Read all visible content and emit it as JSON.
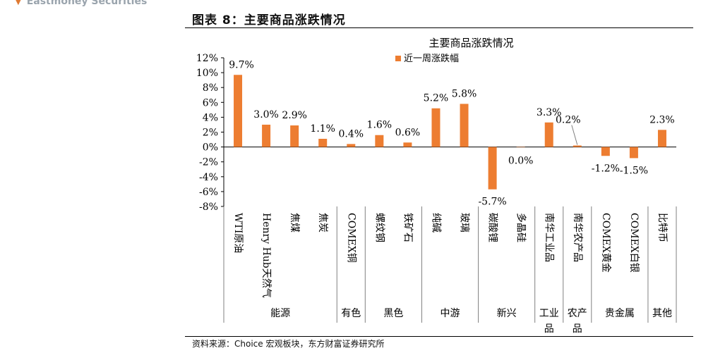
{
  "header": {
    "brand": "Eastmoney Securities",
    "figure_title": "图表 8：主要商品涨跌情况"
  },
  "footer": {
    "source": "资料来源：Choice 宏观板块，东方财富证券研究所"
  },
  "colors": {
    "bar": "#ED7D31",
    "axis": "#000000",
    "divider": "#808080"
  },
  "chart_data": {
    "type": "bar",
    "title": "主要商品涨跌情况",
    "legend": "近一周涨跌幅",
    "legend_position": "top-center",
    "ylim": [
      -8,
      12
    ],
    "yticks": [
      -8,
      -6,
      -4,
      -2,
      0,
      2,
      4,
      6,
      8,
      10,
      12
    ],
    "y_unit": "%",
    "grid": false,
    "categories": [
      "WTI原油",
      "Henry Hub天然气",
      "焦煤",
      "焦炭",
      "COMEX铜",
      "螺纹钢",
      "铁矿石",
      "纯碱",
      "玻璃",
      "碳酸锂",
      "多晶硅",
      "南华工业品",
      "南华农产品",
      "COMEX黄金",
      "COMEX白银",
      "比特币"
    ],
    "values": [
      9.7,
      3.0,
      2.9,
      1.1,
      0.4,
      1.6,
      0.6,
      5.2,
      5.8,
      -5.7,
      0.0,
      3.3,
      0.2,
      -1.2,
      -1.5,
      2.3
    ],
    "labels": [
      "9.7%",
      "3.0%",
      "2.9%",
      "1.1%",
      "0.4%",
      "1.6%",
      "0.6%",
      "5.2%",
      "5.8%",
      "-5.7%",
      "0.0%",
      "3.3%",
      "0.2%",
      "-1.2%",
      "-1.5%",
      "2.3%"
    ],
    "groups": [
      {
        "name": "能源",
        "count": 4
      },
      {
        "name": "有色",
        "count": 1
      },
      {
        "name": "黑色",
        "count": 2
      },
      {
        "name": "中游",
        "count": 2
      },
      {
        "name": "新兴",
        "count": 2
      },
      {
        "name": "工业品",
        "count": 1
      },
      {
        "name": "农产品",
        "count": 1
      },
      {
        "name": "贵金属",
        "count": 2
      },
      {
        "name": "其他",
        "count": 1
      }
    ]
  }
}
